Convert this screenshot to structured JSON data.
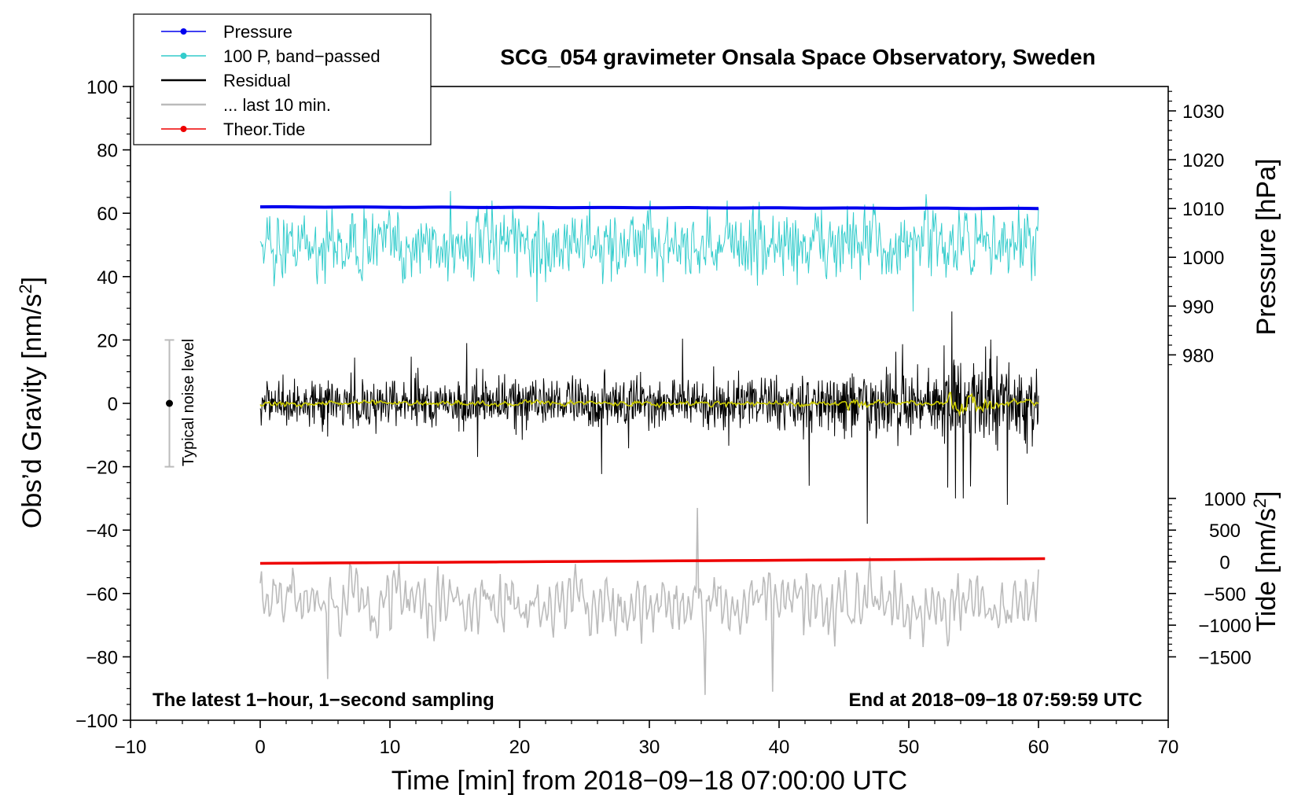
{
  "chart_data": {
    "type": "line",
    "title": "SCG_054 gravimeter Onsala Space Observatory, Sweden",
    "xlabel": "Time [min] from 2018−09−18 07:00:00 UTC",
    "ylabel": "Obs’d Gravity [nm/s",
    "ylabel_sup": "2",
    "ylabel_end": "]",
    "y2label": "Pressure [hPa]",
    "y3label": "Tide [nm/s",
    "y3label_sup": "2",
    "y3label_end": "]",
    "xlim": [
      -10,
      70
    ],
    "ylim": [
      -100,
      100
    ],
    "xticks": [
      -10,
      0,
      10,
      20,
      30,
      40,
      50,
      60,
      70
    ],
    "xtick_labels": [
      "−10",
      "0",
      "10",
      "20",
      "30",
      "40",
      "50",
      "60",
      "70"
    ],
    "yticks": [
      -100,
      -80,
      -60,
      -40,
      -20,
      0,
      20,
      40,
      60,
      80,
      100
    ],
    "ytick_labels": [
      "−100",
      "−80",
      "−60",
      "−40",
      "−20",
      "0",
      "20",
      "40",
      "60",
      "80",
      "100"
    ],
    "pressure_axis": {
      "ticks": [
        980,
        990,
        1000,
        1010,
        1020,
        1030
      ],
      "tick_labels": [
        "980",
        "990",
        "1000",
        "1010",
        "1020",
        "1030"
      ],
      "gravity_at_1010": 61.5,
      "gravity_per_hpa": 1.54
    },
    "tide_axis": {
      "ticks": [
        -1500,
        -1000,
        -500,
        0,
        500,
        1000
      ],
      "tick_labels": [
        "−1500",
        "−1000",
        "−500",
        "0",
        "500",
        "1000"
      ],
      "gravity_at_0": -50,
      "gravity_per_unit": 0.02
    },
    "legend": [
      {
        "label": "Pressure",
        "color": "#0000ee",
        "marker": true
      },
      {
        "label": "100 P, band−passed",
        "color": "#33cccc",
        "marker": true
      },
      {
        "label": "Residual",
        "color": "#000000",
        "marker": false
      },
      {
        "label": "... last 10 min.",
        "color": "#bbbbbb",
        "marker": false
      },
      {
        "label": "Theor.Tide",
        "color": "#ee0000",
        "marker": true
      }
    ],
    "series": [
      {
        "name": "Pressure",
        "color": "#0000ee",
        "x_range": [
          0,
          60
        ],
        "y_start": 62.0,
        "y_end": 61.5
      },
      {
        "name": "100 P, band−passed",
        "color": "#33cccc",
        "x_range": [
          0,
          60
        ],
        "center": 50,
        "amplitude": 7,
        "extremes": {
          "max": 67,
          "min": 29
        }
      },
      {
        "name": "Residual",
        "color": "#000000",
        "x_range": [
          0,
          60
        ],
        "center": 0,
        "amplitude": 6,
        "extremes": {
          "max": 29,
          "min": -38
        }
      },
      {
        "name": "Smoothed residual",
        "color": "#cccc00",
        "x_range": [
          0,
          60
        ],
        "center": 0
      },
      {
        "name": "... last 10 min.",
        "color": "#bbbbbb",
        "x_range": [
          0,
          60
        ],
        "center": -63,
        "amplitude": 8,
        "extremes": {
          "max": -33,
          "min": -92
        }
      },
      {
        "name": "Theor.Tide",
        "color": "#ee0000",
        "x_range": [
          0,
          60.5
        ],
        "y_start": -50.5,
        "y_end": -49.0
      }
    ],
    "noise_bar": {
      "label": "Typical noise level",
      "x": -7,
      "y": 0,
      "half_range": 20
    },
    "annotations": {
      "left": "The latest 1−hour, 1−second sampling",
      "right": "End at 2018−09−18 07:59:59 UTC"
    }
  }
}
